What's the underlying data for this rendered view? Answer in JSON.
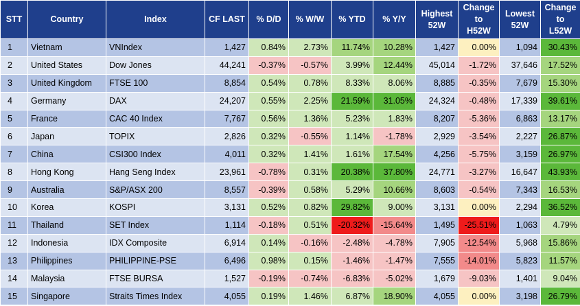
{
  "columns": [
    "STT",
    "Country",
    "Index",
    "CF LAST",
    "% D/D",
    "% W/W",
    "% YTD",
    "% Y/Y",
    "Highest 52W",
    "Change to H52W",
    "Lowest 52W",
    "Change to L52W"
  ],
  "header_lines": [
    [
      "STT"
    ],
    [
      "Country"
    ],
    [
      "Index"
    ],
    [
      "CF LAST"
    ],
    [
      "% D/D"
    ],
    [
      "% W/W"
    ],
    [
      "% YTD"
    ],
    [
      "% Y/Y"
    ],
    [
      "Highest",
      "52W"
    ],
    [
      "Change",
      "to",
      "H52W"
    ],
    [
      "Lowest",
      "52W"
    ],
    [
      "Change",
      "to",
      "L52W"
    ]
  ],
  "colors": {
    "header_bg": "#1f3f8c",
    "header_text": "#ffffff",
    "row_odd": "#b4c4e4",
    "row_even": "#dce4f2",
    "neutral": "#fdf0c0",
    "green_light": "#cfe7b9",
    "green_mid": "#a5d57e",
    "green_strong": "#5bb83a",
    "red_light": "#f6c4c4",
    "red_mid": "#f28a8a",
    "red_strong": "#ee1b1b"
  },
  "rows": [
    {
      "stt": "1",
      "country": "Vietnam",
      "index": "VNIndex",
      "cf_last": "1,427",
      "dd": "0.84%",
      "ww": "2.73%",
      "ytd": "11.74%",
      "yy": "10.28%",
      "h52": "1,427",
      "ch52": "0.00%",
      "l52": "1,094",
      "cl52": "30.43%"
    },
    {
      "stt": "2",
      "country": "United States",
      "index": "Dow Jones",
      "cf_last": "44,241",
      "dd": "-0.37%",
      "ww": "-0.57%",
      "ytd": "3.99%",
      "yy": "12.44%",
      "h52": "45,014",
      "ch52": "-1.72%",
      "l52": "37,646",
      "cl52": "17.52%"
    },
    {
      "stt": "3",
      "country": "United Kingdom",
      "index": "FTSE 100",
      "cf_last": "8,854",
      "dd": "0.54%",
      "ww": "0.78%",
      "ytd": "8.33%",
      "yy": "8.06%",
      "h52": "8,885",
      "ch52": "-0.35%",
      "l52": "7,679",
      "cl52": "15.30%"
    },
    {
      "stt": "4",
      "country": "Germany",
      "index": "DAX",
      "cf_last": "24,207",
      "dd": "0.55%",
      "ww": "2.25%",
      "ytd": "21.59%",
      "yy": "31.05%",
      "h52": "24,324",
      "ch52": "-0.48%",
      "l52": "17,339",
      "cl52": "39.61%"
    },
    {
      "stt": "5",
      "country": "France",
      "index": "CAC 40 Index",
      "cf_last": "7,767",
      "dd": "0.56%",
      "ww": "1.36%",
      "ytd": "5.23%",
      "yy": "1.83%",
      "h52": "8,207",
      "ch52": "-5.36%",
      "l52": "6,863",
      "cl52": "13.17%"
    },
    {
      "stt": "6",
      "country": "Japan",
      "index": "TOPIX",
      "cf_last": "2,826",
      "dd": "0.32%",
      "ww": "-0.55%",
      "ytd": "1.14%",
      "yy": "-1.78%",
      "h52": "2,929",
      "ch52": "-3.54%",
      "l52": "2,227",
      "cl52": "26.87%"
    },
    {
      "stt": "7",
      "country": "China",
      "index": "CSI300 Index",
      "cf_last": "4,011",
      "dd": "0.32%",
      "ww": "1.41%",
      "ytd": "1.61%",
      "yy": "17.54%",
      "h52": "4,256",
      "ch52": "-5.75%",
      "l52": "3,159",
      "cl52": "26.97%"
    },
    {
      "stt": "8",
      "country": "Hong Kong",
      "index": "Hang Seng Index",
      "cf_last": "23,961",
      "dd": "-0.78%",
      "ww": "0.31%",
      "ytd": "20.38%",
      "yy": "37.80%",
      "h52": "24,771",
      "ch52": "-3.27%",
      "l52": "16,647",
      "cl52": "43.93%"
    },
    {
      "stt": "9",
      "country": "Australia",
      "index": "S&P/ASX 200",
      "cf_last": "8,557",
      "dd": "-0.39%",
      "ww": "0.58%",
      "ytd": "5.29%",
      "yy": "10.66%",
      "h52": "8,603",
      "ch52": "-0.54%",
      "l52": "7,343",
      "cl52": "16.53%"
    },
    {
      "stt": "10",
      "country": "Korea",
      "index": "KOSPI",
      "cf_last": "3,131",
      "dd": "0.52%",
      "ww": "0.82%",
      "ytd": "29.82%",
      "yy": "9.00%",
      "h52": "3,131",
      "ch52": "0.00%",
      "l52": "2,294",
      "cl52": "36.52%"
    },
    {
      "stt": "11",
      "country": "Thailand",
      "index": "SET Index",
      "cf_last": "1,114",
      "dd": "-0.18%",
      "ww": "0.51%",
      "ytd": "-20.32%",
      "yy": "-15.64%",
      "h52": "1,495",
      "ch52": "-25.51%",
      "l52": "1,063",
      "cl52": "4.79%"
    },
    {
      "stt": "12",
      "country": "Indonesia",
      "index": "IDX Composite",
      "cf_last": "6,914",
      "dd": "0.14%",
      "ww": "-0.16%",
      "ytd": "-2.48%",
      "yy": "-4.78%",
      "h52": "7,905",
      "ch52": "-12.54%",
      "l52": "5,968",
      "cl52": "15.86%"
    },
    {
      "stt": "13",
      "country": "Philippines",
      "index": "PHILIPPINE-PSE",
      "cf_last": "6,496",
      "dd": "0.98%",
      "ww": "0.15%",
      "ytd": "-1.46%",
      "yy": "-1.47%",
      "h52": "7,555",
      "ch52": "-14.01%",
      "l52": "5,823",
      "cl52": "11.57%"
    },
    {
      "stt": "14",
      "country": "Malaysia",
      "index": "FTSE BURSA",
      "cf_last": "1,527",
      "dd": "-0.19%",
      "ww": "-0.74%",
      "ytd": "-6.83%",
      "yy": "-5.02%",
      "h52": "1,679",
      "ch52": "-9.03%",
      "l52": "1,401",
      "cl52": "9.04%"
    },
    {
      "stt": "15",
      "country": "Singapore",
      "index": "Straits Times Index",
      "cf_last": "4,055",
      "dd": "0.19%",
      "ww": "1.46%",
      "ytd": "6.87%",
      "yy": "18.90%",
      "h52": "4,055",
      "ch52": "0.00%",
      "l52": "3,198",
      "cl52": "26.79%"
    }
  ]
}
